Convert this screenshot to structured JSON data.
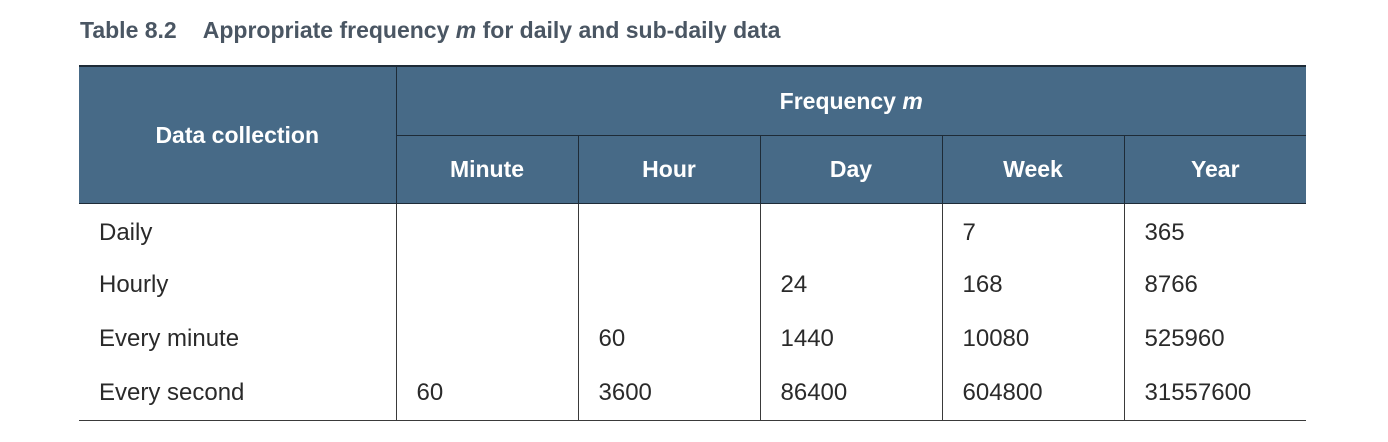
{
  "caption": {
    "number": "Table 8.2",
    "title_before": "Appropriate frequency ",
    "title_var": "m",
    "title_after": " for daily and sub-daily data"
  },
  "header": {
    "row_label": "Data collection",
    "group_before": "Frequency ",
    "group_var": "m",
    "columns": [
      "Minute",
      "Hour",
      "Day",
      "Week",
      "Year"
    ]
  },
  "rows": [
    {
      "label": "Daily",
      "values": [
        "",
        "",
        "",
        "7",
        "365"
      ]
    },
    {
      "label": "Hourly",
      "values": [
        "",
        "",
        "24",
        "168",
        "8766"
      ]
    },
    {
      "label": "Every minute",
      "values": [
        "",
        "60",
        "1440",
        "10080",
        "525960"
      ]
    },
    {
      "label": "Every second",
      "values": [
        "60",
        "3600",
        "86400",
        "604800",
        "31557600"
      ]
    }
  ]
}
